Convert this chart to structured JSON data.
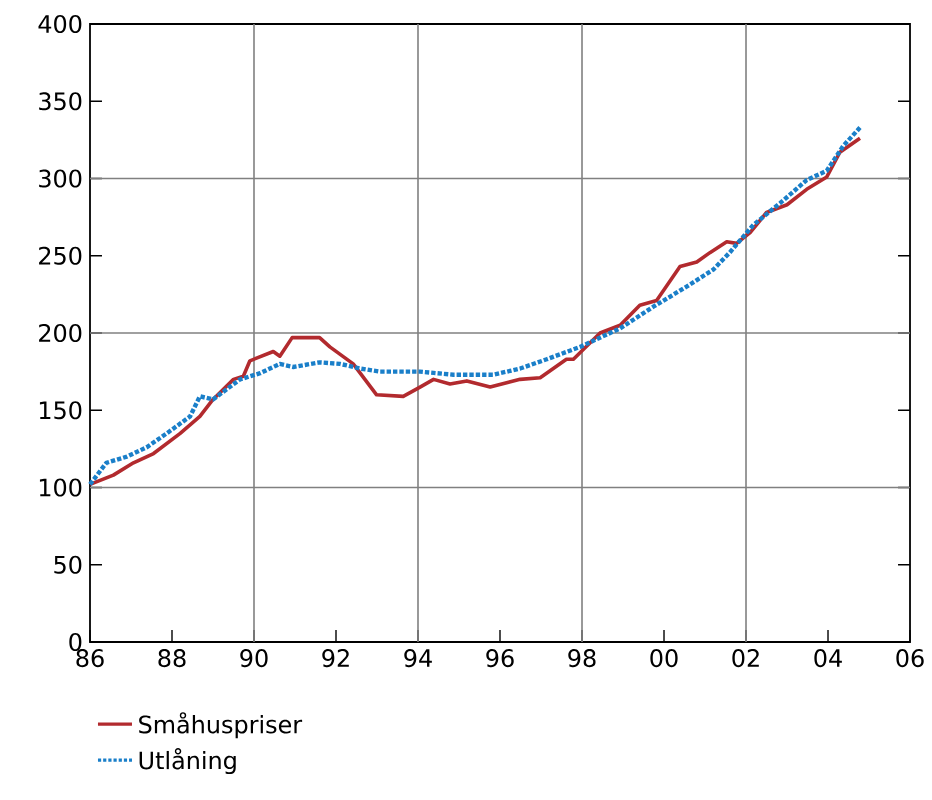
{
  "chart_data": {
    "type": "line",
    "xlim": [
      1986,
      2006
    ],
    "ylim": [
      0,
      400
    ],
    "xticks": [
      {
        "value": 1986,
        "label": "86"
      },
      {
        "value": 1988,
        "label": "88"
      },
      {
        "value": 1990,
        "label": "90"
      },
      {
        "value": 1992,
        "label": "92"
      },
      {
        "value": 1994,
        "label": "94"
      },
      {
        "value": 1996,
        "label": "96"
      },
      {
        "value": 1998,
        "label": "98"
      },
      {
        "value": 2000,
        "label": "00"
      },
      {
        "value": 2002,
        "label": "02"
      },
      {
        "value": 2004,
        "label": "04"
      },
      {
        "value": 2006,
        "label": "06"
      }
    ],
    "yticks": [
      0,
      50,
      100,
      150,
      200,
      250,
      300,
      350,
      400
    ],
    "legend": "bottom",
    "marker": "none",
    "ref_lines": [
      {
        "axis": "x",
        "value": 1990,
        "color": "#808080"
      },
      {
        "axis": "x",
        "value": 1994,
        "color": "#808080"
      },
      {
        "axis": "x",
        "value": 1998,
        "color": "#808080"
      },
      {
        "axis": "x",
        "value": 2002,
        "color": "#808080"
      },
      {
        "axis": "y",
        "value": 100,
        "color": "#808080"
      },
      {
        "axis": "y",
        "value": 200,
        "color": "#808080"
      },
      {
        "axis": "y",
        "value": 300,
        "color": "#808080"
      }
    ],
    "series": [
      {
        "name": "Småhuspriser",
        "color": "#b22a2e",
        "line_style": "solid",
        "x": [
          1986.0,
          1986.57,
          1987.06,
          1987.55,
          1988.2,
          1988.68,
          1989.0,
          1989.5,
          1989.74,
          1989.9,
          1990.47,
          1990.63,
          1990.93,
          1991.6,
          1991.85,
          1992.42,
          1992.99,
          1993.64,
          1994.05,
          1994.38,
          1994.78,
          1995.19,
          1995.76,
          1996.49,
          1996.98,
          1997.62,
          1997.79,
          1998.44,
          1998.93,
          1999.41,
          1999.82,
          2000.39,
          2000.8,
          2001.12,
          2001.53,
          2001.77,
          2002.1,
          2002.5,
          2003.0,
          2003.48,
          2003.97,
          2004.29,
          2004.78
        ],
        "values": [
          102,
          108,
          116,
          122,
          135,
          146,
          157,
          170,
          172,
          182,
          188,
          185,
          197,
          197,
          191,
          180,
          160,
          159,
          165,
          170,
          167,
          169,
          165,
          170,
          171,
          183,
          183,
          200,
          205,
          218,
          221,
          243,
          246,
          252,
          259,
          258,
          265,
          278,
          283,
          293,
          301,
          317,
          326
        ]
      },
      {
        "name": "Utlåning",
        "color": "#1a7fc9",
        "line_style": "dotted",
        "x": [
          1986.0,
          1986.4,
          1986.9,
          1987.38,
          1987.87,
          1988.44,
          1988.68,
          1989.0,
          1989.66,
          1990.15,
          1990.63,
          1990.96,
          1991.6,
          1992.1,
          1992.59,
          1993.07,
          1994.05,
          1994.86,
          1995.84,
          1996.49,
          1997.14,
          1997.95,
          1998.93,
          1999.74,
          2000.55,
          2001.2,
          2001.6,
          2002.18,
          2002.83,
          2003.48,
          2003.97,
          2004.37,
          2004.78
        ],
        "values": [
          102,
          116,
          120,
          126,
          135,
          146,
          159,
          157,
          170,
          174,
          180,
          178,
          181,
          180,
          177,
          175,
          175,
          173,
          173,
          177,
          183,
          191,
          203,
          217,
          230,
          241,
          252,
          270,
          284,
          299,
          305,
          321,
          333
        ]
      }
    ]
  }
}
